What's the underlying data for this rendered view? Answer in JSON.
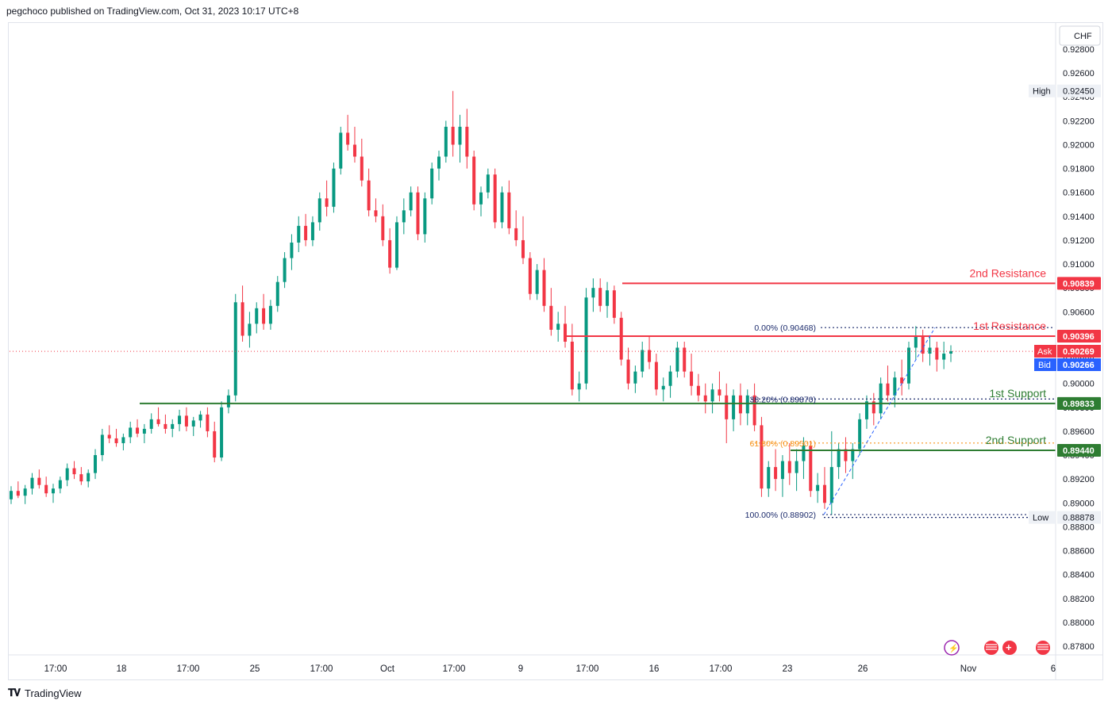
{
  "header": {
    "published": "pegchoco published on TradingView.com, Oct 31, 2023 10:17 UTC+8"
  },
  "footer": {
    "brand": "TradingView",
    "logo": "tradingview-logo-icon"
  },
  "colors": {
    "up": "#089981",
    "down": "#f23645",
    "resistance": "#f23645",
    "support": "#2e7d32",
    "fib_line": "#1b2a6b",
    "fib_618": "#f7931a",
    "bid": "#2962ff",
    "grid_text": "#131722"
  },
  "chart_data": {
    "type": "candlestick",
    "currency": "CHF",
    "y_ticks": [
      "0.92800",
      "0.92600",
      "0.92400",
      "0.92200",
      "0.92000",
      "0.91800",
      "0.91600",
      "0.91400",
      "0.91200",
      "0.91000",
      "0.90800",
      "0.90600",
      "0.90400",
      "0.90200",
      "0.90000",
      "0.89800",
      "0.89600",
      "0.89400",
      "0.89200",
      "0.89000",
      "0.88800",
      "0.88600",
      "0.88400",
      "0.88200",
      "0.88000",
      "0.87800"
    ],
    "ylim": [
      0.8775,
      0.929
    ],
    "x_labels": [
      "17:00",
      "18",
      "17:00",
      "25",
      "17:00",
      "Oct",
      "17:00",
      "9",
      "17:00",
      "16",
      "17:00",
      "23",
      "26",
      "Nov",
      "6"
    ],
    "levels": [
      {
        "label": "2nd Resistance",
        "value": 0.90839,
        "price_label": "0.90839",
        "kind": "resistance"
      },
      {
        "label": "1st Resistance",
        "value": 0.90396,
        "price_label": "0.90396",
        "kind": "resistance"
      },
      {
        "label": "1st Support",
        "value": 0.89833,
        "price_label": "0.89833",
        "kind": "support"
      },
      {
        "label": "2nd Support",
        "value": 0.8944,
        "price_label": "0.89440",
        "kind": "support"
      }
    ],
    "fibonacci": [
      {
        "label": "0.00% (0.90468)",
        "value": 0.90468
      },
      {
        "label": "38.20% (0.89870)",
        "value": 0.8987
      },
      {
        "label": "61.80% (0.89501)",
        "value": 0.89501
      },
      {
        "label": "100.00% (0.88902)",
        "value": 0.88902
      }
    ],
    "markers": {
      "high": {
        "label": "High",
        "price": "0.92450",
        "value": 0.9245
      },
      "low": {
        "label": "Low",
        "price": "0.88878",
        "value": 0.88878
      },
      "ask": {
        "label": "Ask",
        "price": "0.90269",
        "value": 0.90269
      },
      "bid": {
        "label": "Bid",
        "price": "0.90266",
        "value": 0.90266
      }
    },
    "candles": [
      [
        0.8903,
        0.8914,
        0.8899,
        0.891
      ],
      [
        0.891,
        0.8918,
        0.8904,
        0.8906
      ],
      [
        0.8906,
        0.8915,
        0.8899,
        0.8912
      ],
      [
        0.8912,
        0.8925,
        0.8907,
        0.8921
      ],
      [
        0.8921,
        0.8928,
        0.8912,
        0.8915
      ],
      [
        0.8915,
        0.8922,
        0.8905,
        0.8908
      ],
      [
        0.8908,
        0.8916,
        0.89,
        0.8912
      ],
      [
        0.8912,
        0.8922,
        0.8908,
        0.8919
      ],
      [
        0.8919,
        0.8933,
        0.8914,
        0.8929
      ],
      [
        0.8929,
        0.8935,
        0.892,
        0.8924
      ],
      [
        0.8924,
        0.893,
        0.8915,
        0.8918
      ],
      [
        0.8918,
        0.8928,
        0.8913,
        0.8925
      ],
      [
        0.8925,
        0.8945,
        0.892,
        0.894
      ],
      [
        0.894,
        0.8962,
        0.8935,
        0.8957
      ],
      [
        0.8957,
        0.8965,
        0.895,
        0.8954
      ],
      [
        0.8954,
        0.8962,
        0.8947,
        0.895
      ],
      [
        0.895,
        0.8958,
        0.8944,
        0.8955
      ],
      [
        0.8955,
        0.8968,
        0.895,
        0.8963
      ],
      [
        0.8963,
        0.897,
        0.8955,
        0.8958
      ],
      [
        0.8958,
        0.8966,
        0.895,
        0.8962
      ],
      [
        0.8962,
        0.8975,
        0.8958,
        0.897
      ],
      [
        0.897,
        0.898,
        0.8964,
        0.8966
      ],
      [
        0.8966,
        0.8974,
        0.8958,
        0.8962
      ],
      [
        0.8962,
        0.897,
        0.8955,
        0.8966
      ],
      [
        0.8966,
        0.8978,
        0.896,
        0.8973
      ],
      [
        0.8973,
        0.898,
        0.896,
        0.8964
      ],
      [
        0.8964,
        0.8972,
        0.8956,
        0.8969
      ],
      [
        0.8969,
        0.8977,
        0.8963,
        0.8974
      ],
      [
        0.8974,
        0.898,
        0.8955,
        0.896
      ],
      [
        0.896,
        0.8968,
        0.8934,
        0.8938
      ],
      [
        0.8938,
        0.8985,
        0.8935,
        0.898
      ],
      [
        0.898,
        0.8995,
        0.8975,
        0.899
      ],
      [
        0.899,
        0.9075,
        0.8985,
        0.9068
      ],
      [
        0.9068,
        0.9082,
        0.9035,
        0.904
      ],
      [
        0.904,
        0.906,
        0.903,
        0.905
      ],
      [
        0.905,
        0.9068,
        0.9042,
        0.9063
      ],
      [
        0.9063,
        0.9075,
        0.9045,
        0.905
      ],
      [
        0.905,
        0.907,
        0.9045,
        0.9065
      ],
      [
        0.9065,
        0.909,
        0.906,
        0.9085
      ],
      [
        0.9085,
        0.911,
        0.908,
        0.9105
      ],
      [
        0.9105,
        0.9125,
        0.9095,
        0.9118
      ],
      [
        0.9118,
        0.914,
        0.911,
        0.9132
      ],
      [
        0.9132,
        0.9142,
        0.9115,
        0.912
      ],
      [
        0.912,
        0.914,
        0.9115,
        0.9135
      ],
      [
        0.9135,
        0.916,
        0.9128,
        0.9155
      ],
      [
        0.9155,
        0.917,
        0.914,
        0.9148
      ],
      [
        0.9148,
        0.9185,
        0.9143,
        0.918
      ],
      [
        0.918,
        0.9215,
        0.9175,
        0.921
      ],
      [
        0.921,
        0.9225,
        0.9195,
        0.92
      ],
      [
        0.92,
        0.9215,
        0.9185,
        0.919
      ],
      [
        0.919,
        0.9205,
        0.9165,
        0.917
      ],
      [
        0.917,
        0.918,
        0.914,
        0.9145
      ],
      [
        0.9145,
        0.9155,
        0.9135,
        0.914
      ],
      [
        0.914,
        0.915,
        0.9115,
        0.912
      ],
      [
        0.912,
        0.913,
        0.9092,
        0.9097
      ],
      [
        0.9097,
        0.914,
        0.9095,
        0.9135
      ],
      [
        0.9135,
        0.9155,
        0.9125,
        0.9145
      ],
      [
        0.9145,
        0.9165,
        0.914,
        0.916
      ],
      [
        0.916,
        0.9165,
        0.912,
        0.9125
      ],
      [
        0.9125,
        0.916,
        0.9118,
        0.9155
      ],
      [
        0.9155,
        0.9185,
        0.915,
        0.918
      ],
      [
        0.918,
        0.9195,
        0.917,
        0.919
      ],
      [
        0.919,
        0.922,
        0.9185,
        0.9215
      ],
      [
        0.9215,
        0.9245,
        0.919,
        0.92
      ],
      [
        0.92,
        0.9225,
        0.9185,
        0.9215
      ],
      [
        0.9215,
        0.923,
        0.918,
        0.919
      ],
      [
        0.919,
        0.9195,
        0.9145,
        0.915
      ],
      [
        0.915,
        0.9165,
        0.914,
        0.916
      ],
      [
        0.916,
        0.918,
        0.9155,
        0.9175
      ],
      [
        0.9175,
        0.918,
        0.913,
        0.9135
      ],
      [
        0.9135,
        0.9165,
        0.913,
        0.916
      ],
      [
        0.916,
        0.917,
        0.9125,
        0.913
      ],
      [
        0.913,
        0.9145,
        0.9115,
        0.912
      ],
      [
        0.912,
        0.914,
        0.91,
        0.9105
      ],
      [
        0.9105,
        0.911,
        0.907,
        0.9075
      ],
      [
        0.9075,
        0.91,
        0.907,
        0.9095
      ],
      [
        0.9095,
        0.9105,
        0.906,
        0.9065
      ],
      [
        0.9065,
        0.908,
        0.904,
        0.9045
      ],
      [
        0.9045,
        0.906,
        0.9035,
        0.905
      ],
      [
        0.905,
        0.9065,
        0.903,
        0.9035
      ],
      [
        0.9035,
        0.905,
        0.899,
        0.8995
      ],
      [
        0.8995,
        0.901,
        0.8985,
        0.9
      ],
      [
        0.9,
        0.908,
        0.8995,
        0.9072
      ],
      [
        0.9072,
        0.9088,
        0.906,
        0.908
      ],
      [
        0.908,
        0.9088,
        0.906,
        0.9065
      ],
      [
        0.9065,
        0.9085,
        0.9055,
        0.9078
      ],
      [
        0.9078,
        0.9082,
        0.905,
        0.9055
      ],
      [
        0.9055,
        0.906,
        0.9015,
        0.902
      ],
      [
        0.902,
        0.903,
        0.8995,
        0.9
      ],
      [
        0.9,
        0.9015,
        0.8992,
        0.901
      ],
      [
        0.901,
        0.9035,
        0.9005,
        0.9028
      ],
      [
        0.9028,
        0.904,
        0.9012,
        0.9018
      ],
      [
        0.9018,
        0.9025,
        0.899,
        0.8995
      ],
      [
        0.8995,
        0.9005,
        0.8985,
        0.8998
      ],
      [
        0.8998,
        0.9015,
        0.8988,
        0.901
      ],
      [
        0.901,
        0.9035,
        0.9005,
        0.903
      ],
      [
        0.903,
        0.9035,
        0.9005,
        0.901
      ],
      [
        0.901,
        0.9025,
        0.899,
        0.8998
      ],
      [
        0.8998,
        0.9008,
        0.8985,
        0.899
      ],
      [
        0.899,
        0.9,
        0.8975,
        0.8985
      ],
      [
        0.8985,
        0.9,
        0.8975,
        0.8995
      ],
      [
        0.8995,
        0.901,
        0.8985,
        0.899
      ],
      [
        0.899,
        0.9,
        0.895,
        0.897
      ],
      [
        0.897,
        0.8995,
        0.896,
        0.899
      ],
      [
        0.899,
        0.9,
        0.8965,
        0.8975
      ],
      [
        0.8975,
        0.8995,
        0.8965,
        0.899
      ],
      [
        0.899,
        0.9,
        0.896,
        0.8965
      ],
      [
        0.8965,
        0.8972,
        0.8905,
        0.8912
      ],
      [
        0.8912,
        0.8935,
        0.8905,
        0.893
      ],
      [
        0.893,
        0.8945,
        0.891,
        0.892
      ],
      [
        0.892,
        0.894,
        0.8905,
        0.8935
      ],
      [
        0.8935,
        0.895,
        0.8915,
        0.8925
      ],
      [
        0.8925,
        0.8945,
        0.891,
        0.8935
      ],
      [
        0.8935,
        0.8955,
        0.892,
        0.8948
      ],
      [
        0.8948,
        0.8952,
        0.8905,
        0.891
      ],
      [
        0.891,
        0.8925,
        0.89,
        0.8915
      ],
      [
        0.8915,
        0.893,
        0.8895,
        0.89
      ],
      [
        0.89,
        0.896,
        0.889,
        0.893
      ],
      [
        0.893,
        0.895,
        0.892,
        0.8945
      ],
      [
        0.8945,
        0.8955,
        0.8925,
        0.8935
      ],
      [
        0.8935,
        0.895,
        0.892,
        0.8945
      ],
      [
        0.8945,
        0.8975,
        0.894,
        0.897
      ],
      [
        0.897,
        0.899,
        0.8962,
        0.8985
      ],
      [
        0.8985,
        0.8992,
        0.8965,
        0.8975
      ],
      [
        0.8975,
        0.9005,
        0.897,
        0.9
      ],
      [
        0.9,
        0.9015,
        0.8985,
        0.899
      ],
      [
        0.899,
        0.901,
        0.898,
        0.9005
      ],
      [
        0.9005,
        0.902,
        0.899,
        0.9
      ],
      [
        0.9,
        0.9035,
        0.8995,
        0.903
      ],
      [
        0.903,
        0.9048,
        0.902,
        0.904
      ],
      [
        0.904,
        0.9045,
        0.9018,
        0.9025
      ],
      [
        0.9025,
        0.904,
        0.9015,
        0.903
      ],
      [
        0.903,
        0.9035,
        0.901,
        0.902
      ],
      [
        0.902,
        0.9035,
        0.9012,
        0.9025
      ],
      [
        0.9025,
        0.9032,
        0.9018,
        0.9027
      ]
    ]
  }
}
